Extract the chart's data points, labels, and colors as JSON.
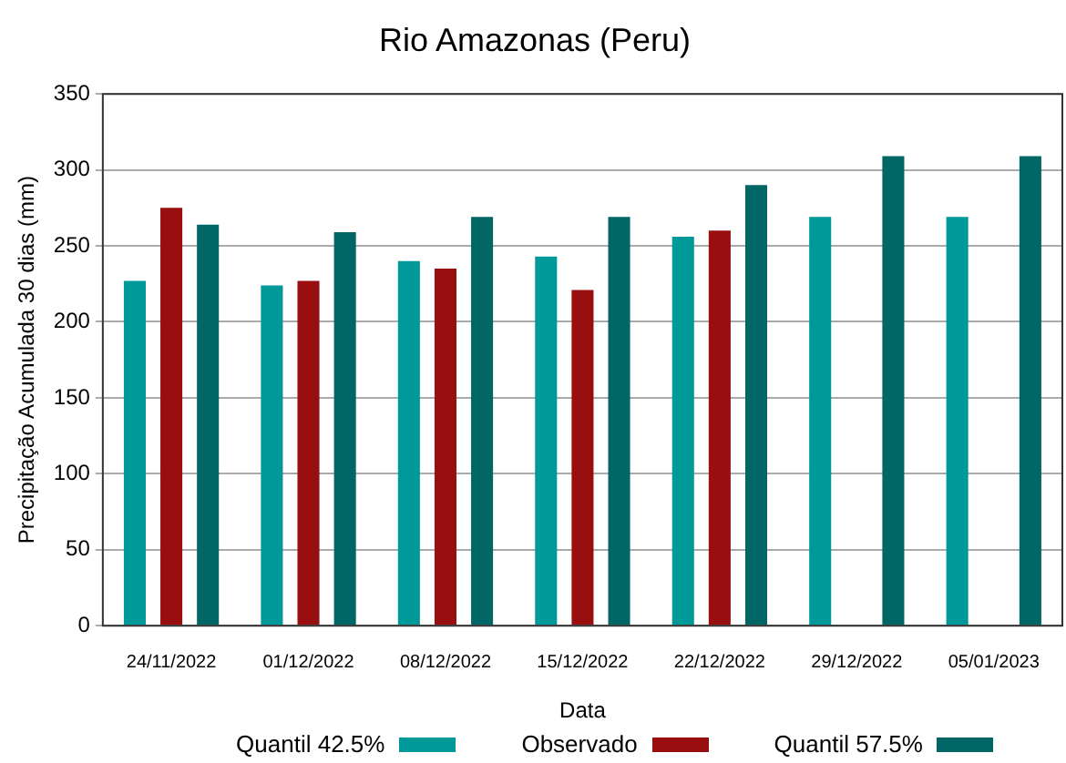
{
  "chart_data": {
    "type": "bar",
    "title": "Rio Amazonas (Peru)",
    "xlabel": "Data",
    "ylabel": "Precipitação Acumulada 30 dias (mm)",
    "categories": [
      "24/11/2022",
      "01/12/2022",
      "08/12/2022",
      "15/12/2022",
      "22/12/2022",
      "29/12/2022",
      "05/01/2023"
    ],
    "series": [
      {
        "name": "Quantil 42.5%",
        "color": "#009999",
        "values": [
          227,
          224,
          240,
          243,
          256,
          269,
          269
        ]
      },
      {
        "name": "Observado",
        "color": "#990f0f",
        "values": [
          275,
          227,
          235,
          221,
          260,
          null,
          null
        ]
      },
      {
        "name": "Quantil 57.5%",
        "color": "#006666",
        "values": [
          264,
          259,
          269,
          269,
          290,
          309,
          309
        ]
      }
    ],
    "ylim": [
      0,
      350
    ],
    "yticks": [
      0,
      50,
      100,
      150,
      200,
      250,
      300,
      350
    ],
    "grid": "y",
    "legend": "bottom"
  }
}
